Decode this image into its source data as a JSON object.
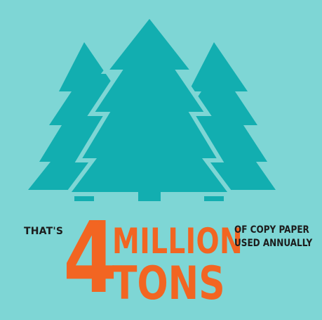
{
  "graphic": {
    "icon": "pine-trees-icon",
    "colors": {
      "background": "#7ed6d5",
      "trees": "#12aeb0",
      "accent": "#f26522",
      "text": "#1c1c1c"
    }
  },
  "stat": {
    "prefix": "THAT'S",
    "number": "4",
    "unit_line1": "MILLION",
    "unit_line2": "TONS",
    "description_line1": "OF COPY PAPER",
    "description_line2": "USED ANNUALLY"
  }
}
